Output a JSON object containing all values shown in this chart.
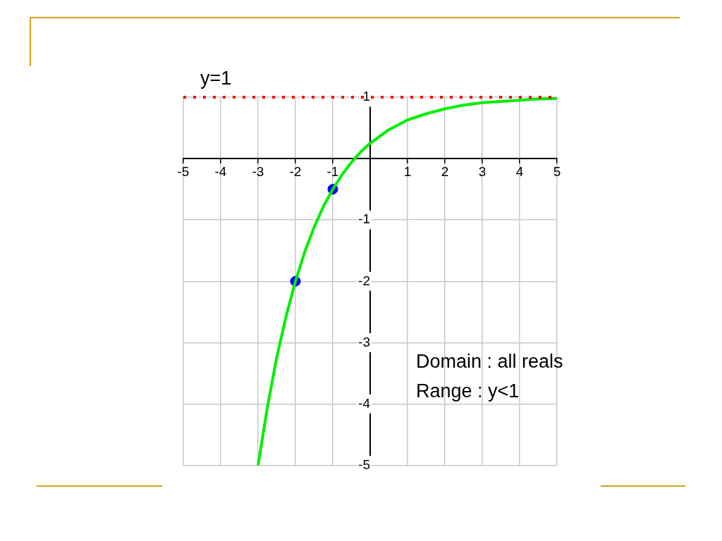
{
  "chart_data": {
    "type": "line",
    "xlim": [
      -5,
      5
    ],
    "xticks": [
      -5,
      -4,
      -3,
      -2,
      -1,
      {
        "value": 0,
        "label": null
      },
      1,
      2,
      3,
      4,
      5
    ],
    "ylim": [
      -5,
      1
    ],
    "yticks": [
      -5,
      -4,
      -3,
      -2,
      -1,
      {
        "value": 0,
        "label": null
      },
      1
    ],
    "grid": true,
    "legend": false,
    "series": [
      {
        "type": "line",
        "color": "#00ee00",
        "marker": "none",
        "x": [
          -3,
          -2.75,
          -2.5,
          -2.25,
          -2,
          -1.75,
          -1.5,
          -1.25,
          -1,
          -0.75,
          -0.5,
          -0.25,
          0,
          0.5,
          1,
          1.5,
          2,
          2.5,
          3,
          3.5,
          4,
          4.5,
          5
        ],
        "values": [
          -5,
          -4.05,
          -3.24,
          -2.57,
          -2,
          -1.52,
          -1.12,
          -0.78,
          -0.5,
          -0.26,
          -0.06,
          0.11,
          0.25,
          0.47,
          0.63,
          0.73,
          0.81,
          0.87,
          0.91,
          0.93,
          0.95,
          0.97,
          0.98
        ]
      },
      {
        "type": "scatter",
        "color": "#0000ff",
        "marker": "circle",
        "x": [
          -2,
          -1
        ],
        "values": [
          -2,
          -0.5
        ]
      }
    ],
    "ref_lines": [
      {
        "axis": "y",
        "value": 1,
        "label": "y=1",
        "color": "#ff0000",
        "line_style": "dotted"
      }
    ],
    "annotations": [
      "Domain : all reals",
      "Range : y<1"
    ]
  }
}
